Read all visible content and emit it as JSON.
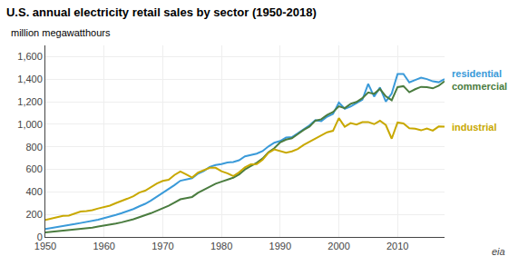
{
  "chart_data": {
    "type": "line",
    "title": "U.S. annual electricity retail sales by sector (1950-2018)",
    "ylabel": "million megawatthours",
    "x": [
      1950,
      1951,
      1952,
      1953,
      1954,
      1955,
      1956,
      1957,
      1958,
      1959,
      1960,
      1961,
      1962,
      1963,
      1964,
      1965,
      1966,
      1967,
      1968,
      1969,
      1970,
      1971,
      1972,
      1973,
      1974,
      1975,
      1976,
      1977,
      1978,
      1979,
      1980,
      1981,
      1982,
      1983,
      1984,
      1985,
      1986,
      1987,
      1988,
      1989,
      1990,
      1991,
      1992,
      1993,
      1994,
      1995,
      1996,
      1997,
      1998,
      1999,
      2000,
      2001,
      2002,
      2003,
      2004,
      2005,
      2006,
      2007,
      2008,
      2009,
      2010,
      2011,
      2012,
      2013,
      2014,
      2015,
      2016,
      2017,
      2018
    ],
    "series": [
      {
        "name": "residential",
        "color": "#3a9ad9",
        "values": [
          70,
          78,
          87,
          97,
          103,
          114,
          124,
          133,
          141,
          153,
          167,
          179,
          196,
          212,
          228,
          248,
          272,
          294,
          324,
          357,
          390,
          421,
          460,
          499,
          512,
          521,
          562,
          586,
          621,
          638,
          647,
          660,
          665,
          681,
          715,
          727,
          739,
          762,
          803,
          836,
          852,
          882,
          886,
          919,
          956,
          991,
          1036,
          1028,
          1067,
          1091,
          1192,
          1138,
          1157,
          1185,
          1218,
          1359,
          1246,
          1326,
          1201,
          1273,
          1446,
          1447,
          1372,
          1393,
          1414,
          1401,
          1381,
          1373,
          1401
        ]
      },
      {
        "name": "commercial",
        "color": "#4a7c3f",
        "values": [
          40,
          45,
          50,
          55,
          58,
          65,
          72,
          78,
          83,
          92,
          100,
          108,
          119,
          130,
          142,
          157,
          175,
          190,
          211,
          233,
          254,
          277,
          305,
          334,
          345,
          355,
          392,
          418,
          449,
          472,
          490,
          510,
          526,
          555,
          599,
          629,
          658,
          696,
          751,
          788,
          839,
          864,
          876,
          912,
          950,
          980,
          1032,
          1044,
          1083,
          1109,
          1159,
          1143,
          1181,
          1198,
          1231,
          1283,
          1270,
          1313,
          1248,
          1213,
          1330,
          1338,
          1284,
          1311,
          1332,
          1330,
          1319,
          1342,
          1382
        ]
      },
      {
        "name": "industrial",
        "color": "#c8a800",
        "values": [
          150,
          162,
          173,
          188,
          190,
          210,
          225,
          230,
          237,
          253,
          268,
          278,
          300,
          318,
          340,
          362,
          394,
          411,
          444,
          474,
          497,
          507,
          550,
          581,
          555,
          527,
          571,
          592,
          614,
          614,
          583,
          565,
          540,
          573,
          618,
          644,
          646,
          685,
          746,
          777,
          762,
          748,
          759,
          781,
          816,
          845,
          876,
          900,
          929,
          942,
          1054,
          978,
          1010,
          998,
          1019,
          1020,
          1001,
          1031,
          993,
          872,
          1016,
          1007,
          965,
          960,
          946,
          963,
          944,
          980,
          978
        ]
      }
    ],
    "xlim": [
      1950,
      2018
    ],
    "xticks": [
      1950,
      1960,
      1970,
      1980,
      1990,
      2000,
      2010
    ],
    "ylim": [
      0,
      1700
    ],
    "yticks": [
      0,
      200,
      400,
      600,
      800,
      {
        "value": 1000,
        "label": "1,000"
      },
      {
        "value": 1200,
        "label": "1,200"
      },
      {
        "value": 1400,
        "label": "1,400"
      },
      {
        "value": 1600,
        "label": "1,600"
      }
    ],
    "grid": true,
    "annotations": [
      {
        "text": "eia"
      }
    ]
  }
}
